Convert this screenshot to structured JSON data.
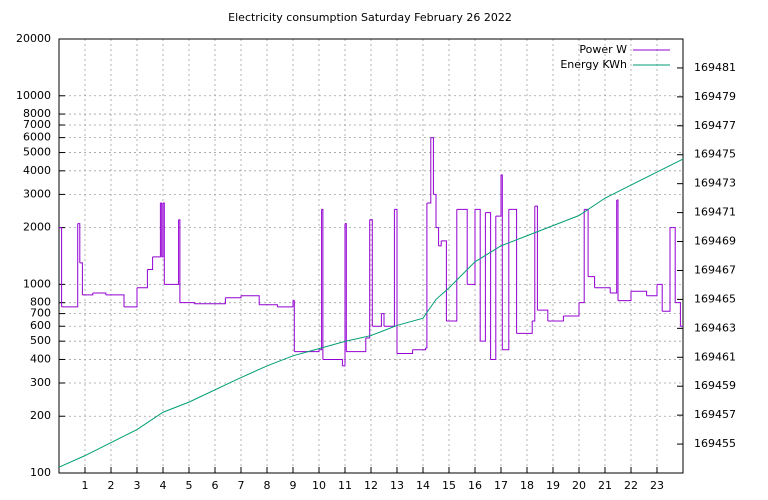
{
  "chart_data": {
    "type": "line",
    "title": "Electricity consumption Saturday February 26 2022",
    "xlim": [
      0,
      24
    ],
    "xticks": [
      1,
      2,
      3,
      4,
      5,
      6,
      7,
      8,
      9,
      10,
      11,
      12,
      13,
      14,
      15,
      16,
      17,
      18,
      19,
      20,
      21,
      22,
      23
    ],
    "ylim": [
      100,
      20000
    ],
    "yscale": "log",
    "yticks": [
      100,
      200,
      300,
      400,
      500,
      600,
      700,
      800,
      1000,
      2000,
      3000,
      4000,
      5000,
      6000,
      7000,
      8000,
      10000,
      20000
    ],
    "y2lim": [
      169453,
      169483
    ],
    "y2ticks": [
      169455,
      169457,
      169459,
      169461,
      169463,
      169465,
      169467,
      169469,
      169471,
      169473,
      169475,
      169477,
      169479,
      169481
    ],
    "grid": true,
    "legend": "top-right",
    "series": [
      {
        "name": "Power W",
        "color": "#9400d3",
        "step": true,
        "x": [
          0,
          0.1,
          0.7,
          0.72,
          0.8,
          0.9,
          1.3,
          1.8,
          2.5,
          3.0,
          3.4,
          3.6,
          3.9,
          3.95,
          4.0,
          4.05,
          4.6,
          4.65,
          5.2,
          6.4,
          7.0,
          7.7,
          8.4,
          9.0,
          9.05,
          10.0,
          10.1,
          10.15,
          10.9,
          11.0,
          11.05,
          11.8,
          11.95,
          12.05,
          12.4,
          12.5,
          12.9,
          13.0,
          13.6,
          14.1,
          14.15,
          14.3,
          14.4,
          14.5,
          14.6,
          14.7,
          14.9,
          15.3,
          15.7,
          16.0,
          16.2,
          16.4,
          16.6,
          16.8,
          17.0,
          17.05,
          17.3,
          17.6,
          18.2,
          18.3,
          18.4,
          18.8,
          19.4,
          20.0,
          20.2,
          20.35,
          20.6,
          21.2,
          21.45,
          21.5,
          22.0,
          22.6,
          23.0,
          23.2,
          23.5,
          23.7,
          23.9
        ],
        "values": [
          2000,
          760,
          760,
          2100,
          1300,
          880,
          900,
          880,
          760,
          960,
          1200,
          1400,
          2700,
          1400,
          2700,
          1000,
          2200,
          800,
          790,
          850,
          870,
          780,
          760,
          820,
          440,
          450,
          2500,
          400,
          370,
          2100,
          440,
          520,
          2200,
          600,
          700,
          600,
          2500,
          430,
          450,
          460,
          2700,
          6000,
          3000,
          2000,
          1600,
          1700,
          640,
          2500,
          1000,
          2500,
          500,
          2400,
          400,
          2300,
          3800,
          450,
          2500,
          550,
          640,
          2600,
          730,
          640,
          680,
          800,
          2500,
          1100,
          960,
          900,
          2800,
          820,
          920,
          870,
          1000,
          720,
          2000,
          800,
          600
        ]
      },
      {
        "name": "Energy KWh",
        "color": "#009e73",
        "axis": "y2",
        "x": [
          0,
          1,
          3,
          4,
          5,
          7,
          8,
          9,
          10,
          11,
          12,
          13,
          14,
          14.5,
          15,
          16,
          17,
          18,
          19,
          20,
          21,
          22,
          23,
          24
        ],
        "values": [
          169453.4,
          169454.2,
          169456,
          169457.2,
          169457.9,
          169459.6,
          169460.4,
          169461.1,
          169461.6,
          169462.1,
          169462.5,
          169463.2,
          169463.7,
          169465,
          169465.8,
          169467.6,
          169468.7,
          169469.4,
          169470.1,
          169470.8,
          169472,
          169472.9,
          169473.8,
          169474.7
        ]
      }
    ]
  }
}
